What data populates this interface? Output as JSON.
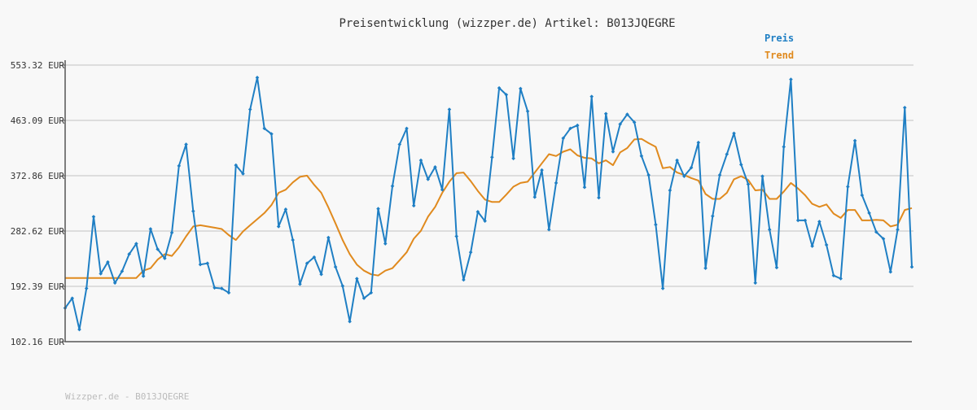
{
  "chart_data": {
    "type": "line",
    "title": "Preisentwicklung (wizzper.de) Artikel: B013JQEGRE",
    "footer": "Wizzper.de - B013JQEGRE",
    "legend_position": "top-right",
    "ylim": [
      102.16,
      553.32
    ],
    "y_ticks": [
      "102.16 EUR",
      "192.39 EUR",
      "282.62 EUR",
      "372.86 EUR",
      "463.09 EUR",
      "553.32 EUR"
    ],
    "grid": true,
    "series": [
      {
        "name": "Preis",
        "color": "#1f7fc4",
        "values": [
          157,
          173,
          122,
          189,
          306,
          213,
          232,
          198,
          217,
          245,
          262,
          209,
          286,
          253,
          238,
          280,
          389,
          424,
          315,
          228,
          230,
          190,
          189,
          182,
          390,
          376,
          481,
          533,
          450,
          441,
          290,
          318,
          268,
          196,
          230,
          240,
          212,
          272,
          224,
          193,
          135,
          205,
          173,
          182,
          319,
          262,
          356,
          424,
          450,
          324,
          398,
          367,
          387,
          350,
          481,
          274,
          203,
          248,
          314,
          299,
          403,
          516,
          505,
          401,
          515,
          478,
          338,
          382,
          285,
          361,
          434,
          450,
          455,
          354,
          502,
          337,
          474,
          412,
          457,
          473,
          460,
          405,
          374,
          293,
          189,
          349,
          398,
          372,
          386,
          427,
          222,
          307,
          374,
          408,
          442,
          391,
          359,
          198,
          372,
          285,
          223,
          420,
          530,
          300,
          300,
          258,
          298,
          260,
          210,
          205,
          355,
          430,
          341,
          312,
          281,
          270,
          216,
          285,
          484,
          224
        ],
        "marker": "diamond"
      },
      {
        "name": "Trend",
        "color": "#e08a1e",
        "values": [
          206,
          206,
          206,
          206,
          206,
          206,
          206,
          206,
          206,
          206,
          206,
          218,
          222,
          236,
          245,
          242,
          256,
          274,
          290,
          292,
          290,
          288,
          286,
          276,
          268,
          282,
          292,
          302,
          312,
          325,
          345,
          350,
          362,
          371,
          373,
          358,
          345,
          321,
          295,
          268,
          245,
          228,
          218,
          212,
          210,
          218,
          222,
          235,
          248,
          270,
          283,
          306,
          322,
          345,
          363,
          377,
          378,
          364,
          348,
          334,
          330,
          330,
          342,
          355,
          361,
          363,
          378,
          393,
          408,
          405,
          412,
          416,
          406,
          402,
          401,
          393,
          398,
          390,
          411,
          418,
          432,
          433,
          426,
          420,
          385,
          387,
          378,
          374,
          369,
          365,
          343,
          335,
          335,
          345,
          367,
          372,
          366,
          349,
          350,
          335,
          335,
          347,
          361,
          352,
          341,
          327,
          322,
          326,
          311,
          304,
          317,
          317,
          300,
          300,
          301,
          300,
          290,
          293,
          317,
          320
        ]
      }
    ]
  }
}
